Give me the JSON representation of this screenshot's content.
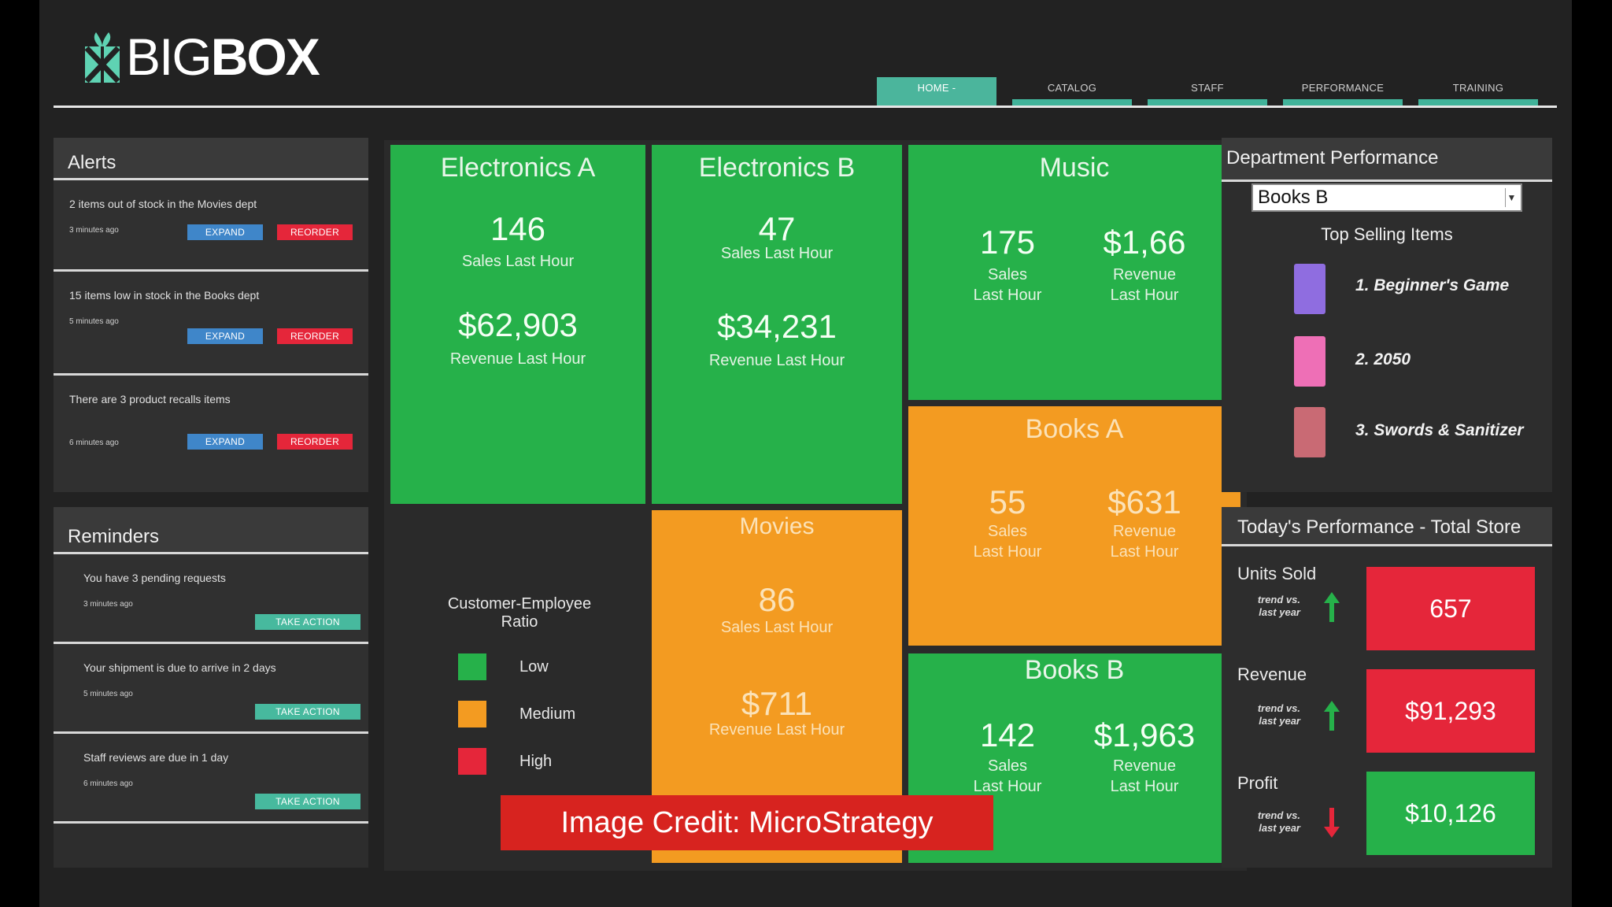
{
  "brand": {
    "name_light": "BIG",
    "name_bold": "BOX"
  },
  "nav": [
    {
      "label": "HOME -",
      "active": true
    },
    {
      "label": "CATALOG",
      "active": false
    },
    {
      "label": "STAFF",
      "active": false
    },
    {
      "label": "PERFORMANCE",
      "active": false
    },
    {
      "label": "TRAINING",
      "active": false
    }
  ],
  "alerts": {
    "title": "Alerts",
    "items": [
      {
        "text": "2 items out of stock in the Movies dept",
        "time": "3 minutes ago",
        "expand": "EXPAND",
        "reorder": "REORDER"
      },
      {
        "text": "15 items low in stock in the Books dept",
        "time": "5 minutes ago",
        "expand": "EXPAND",
        "reorder": "REORDER"
      },
      {
        "text": "There are 3 product recalls items",
        "time": "6 minutes ago",
        "expand": "EXPAND",
        "reorder": "REORDER"
      }
    ]
  },
  "reminders": {
    "title": "Reminders",
    "items": [
      {
        "text": "You have 3 pending requests",
        "time": "3 minutes ago",
        "action": "TAKE ACTION"
      },
      {
        "text": "Your shipment is due to arrive in 2 days",
        "time": "5 minutes ago",
        "action": "TAKE ACTION"
      },
      {
        "text": "Staff reviews are due in 1 day",
        "time": "6 minutes ago",
        "action": "TAKE ACTION"
      }
    ]
  },
  "tiles": {
    "electronics_a": {
      "title": "Electronics A",
      "sales": "146",
      "sales_label": "Sales Last Hour",
      "revenue": "$62,903",
      "revenue_label": "Revenue Last Hour",
      "ratio": "Low"
    },
    "electronics_b": {
      "title": "Electronics B",
      "sales": "47",
      "sales_label": "Sales Last Hour",
      "revenue": "$34,231",
      "revenue_label": "Revenue Last Hour",
      "ratio": "Low"
    },
    "music": {
      "title": "Music",
      "sales": "175",
      "sales_label_1": "Sales",
      "sales_label_2": "Last Hour",
      "revenue": "$1,66",
      "revenue_label_1": "Revenue",
      "revenue_label_2": "Last Hour",
      "ratio": "Low"
    },
    "books_a": {
      "title": "Books A",
      "sales": "55",
      "sales_label_1": "Sales",
      "sales_label_2": "Last Hour",
      "revenue": "$631",
      "revenue_label_1": "Revenue",
      "revenue_label_2": "Last Hour",
      "ratio": "Medium"
    },
    "movies": {
      "title": "Movies",
      "sales": "86",
      "sales_label": "Sales Last Hour",
      "revenue": "$711",
      "revenue_label": "Revenue Last Hour",
      "ratio": "Medium"
    },
    "books_b": {
      "title": "Books B",
      "sales": "142",
      "sales_label_1": "Sales",
      "sales_label_2": "Last Hour",
      "revenue": "$1,963",
      "revenue_label_1": "Revenue",
      "revenue_label_2": "Last Hour",
      "ratio": "Low"
    }
  },
  "legend": {
    "title_1": "Customer-Employee",
    "title_2": "Ratio",
    "items": [
      {
        "label": "Low",
        "color": "#26b14a"
      },
      {
        "label": "Medium",
        "color": "#f39b21"
      },
      {
        "label": "High",
        "color": "#e5263a"
      }
    ]
  },
  "department": {
    "title": "Department Performance",
    "selected": "Books B",
    "top_title": "Top Selling Items",
    "items": [
      {
        "label": "1. Beginner's Game",
        "color": "#8f6de0"
      },
      {
        "label": "2. 2050",
        "color": "#ee6fb6"
      },
      {
        "label": "3. Swords & Sanitizer",
        "color": "#c96a74"
      }
    ]
  },
  "today": {
    "title": "Today's Performance - Total Store",
    "trend_1": "trend vs.",
    "trend_2": "last year",
    "kpis": [
      {
        "label": "Units Sold",
        "value": "657",
        "trend": "up",
        "color": "#e5263a"
      },
      {
        "label": "Revenue",
        "value": "$91,293",
        "trend": "up",
        "color": "#e5263a"
      },
      {
        "label": "Profit",
        "value": "$10,126",
        "trend": "down",
        "color": "#26b14a"
      }
    ]
  },
  "credit": "Image Credit: MicroStrategy"
}
